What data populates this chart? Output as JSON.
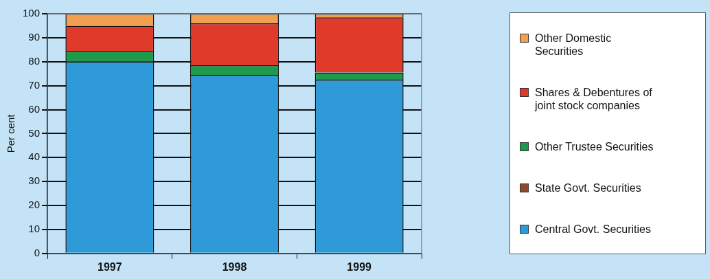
{
  "chart_data": {
    "type": "bar",
    "stacked": true,
    "ylabel": "Per cent",
    "categories": [
      "1997",
      "1998",
      "1999"
    ],
    "ylim": [
      0,
      100
    ],
    "yticks": [
      0,
      10,
      20,
      30,
      40,
      50,
      60,
      70,
      80,
      90,
      100
    ],
    "grid": "y",
    "legend": "right",
    "series": [
      {
        "name": "Central Govt. Securities",
        "color": "#2e9bd8",
        "values": [
          80,
          74.5,
          72.5
        ]
      },
      {
        "name": "State Govt. Securities",
        "color": "#8b4a2b",
        "values": [
          null,
          null,
          null
        ]
      },
      {
        "name": "Other Trustee Securities",
        "color": "#1e9a4a",
        "values": [
          4.5,
          4,
          3
        ]
      },
      {
        "name": "Shares & Debentures of joint stock companies",
        "color": "#e03a2a",
        "values": [
          10.5,
          17.5,
          23
        ]
      },
      {
        "name": "Other Domestic Securities",
        "color": "#f0a050",
        "values": [
          5,
          4,
          1.5
        ]
      }
    ]
  }
}
